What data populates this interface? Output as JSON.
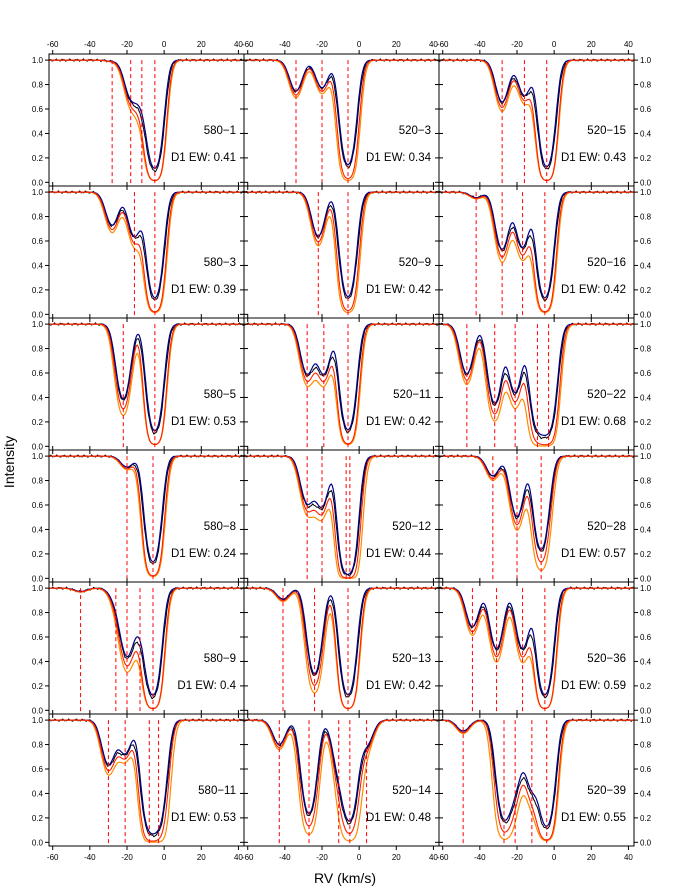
{
  "chart_data": {
    "type": "line",
    "layout": {
      "rows": 6,
      "cols": 3
    },
    "xlabel": "RV (km/s)",
    "ylabel": "Intensity",
    "xlim": [
      -62,
      43
    ],
    "ylim": [
      -0.03,
      1.05
    ],
    "x_ticks": [
      -60,
      -40,
      -20,
      0,
      20,
      40
    ],
    "y_ticks": [
      0.0,
      0.2,
      0.4,
      0.6,
      0.8,
      1.0
    ],
    "series_colors": {
      "observed": "#000000",
      "blue_model": "#00008b",
      "orange_model": "#ff8c00",
      "red_model": "#ff2000",
      "marker": "#ff0000"
    },
    "panels": [
      {
        "label": "580−1",
        "ew": "D1 EW: 0.41",
        "components": [
          [
            -28,
            0.01
          ],
          [
            -18,
            0.32
          ],
          [
            -12,
            0.3
          ],
          [
            -5,
            0.98
          ]
        ],
        "markers": [
          -28,
          -18,
          -12,
          -5
        ]
      },
      {
        "label": "520−3",
        "ew": "D1 EW: 0.34",
        "components": [
          [
            -34,
            0.28
          ],
          [
            -20,
            0.25
          ],
          [
            -6,
            0.95
          ]
        ],
        "markers": [
          -34,
          -20,
          -6
        ]
      },
      {
        "label": "520−15",
        "ew": "D1 EW: 0.43",
        "components": [
          [
            -28,
            0.38
          ],
          [
            -16,
            0.32
          ],
          [
            -4,
            0.97
          ]
        ],
        "markers": [
          -28,
          -16,
          -4
        ]
      },
      {
        "label": "580−3",
        "ew": "D1 EW: 0.39",
        "components": [
          [
            -28,
            0.3
          ],
          [
            -16,
            0.4
          ],
          [
            -5,
            0.96
          ]
        ],
        "markers": [
          -16,
          -5
        ]
      },
      {
        "label": "520−9",
        "ew": "D1 EW: 0.42",
        "components": [
          [
            -22,
            0.4
          ],
          [
            -6,
            0.95
          ]
        ],
        "markers": [
          -22,
          -6
        ]
      },
      {
        "label": "520−16",
        "ew": "D1 EW: 0.42",
        "components": [
          [
            -42,
            0.05
          ],
          [
            -28,
            0.52
          ],
          [
            -17,
            0.5
          ],
          [
            -5,
            0.96
          ]
        ],
        "markers": [
          -42,
          -28,
          -17,
          -5
        ]
      },
      {
        "label": "580−5",
        "ew": "D1 EW: 0.53",
        "components": [
          [
            -22,
            0.68
          ],
          [
            -5,
            0.97
          ]
        ],
        "markers": [
          -22,
          -5
        ]
      },
      {
        "label": "520−11",
        "ew": "D1 EW: 0.42",
        "components": [
          [
            -28,
            0.45
          ],
          [
            -19,
            0.45
          ],
          [
            -6,
            0.96
          ]
        ],
        "markers": [
          -28,
          -19,
          -6
        ]
      },
      {
        "label": "520−22",
        "ew": "D1 EW: 0.68",
        "components": [
          [
            -47,
            0.45
          ],
          [
            -32,
            0.72
          ],
          [
            -21,
            0.62
          ],
          [
            -9,
            0.92
          ],
          [
            -3,
            0.95
          ]
        ],
        "markers": [
          -47,
          -32,
          -21,
          -9,
          -3
        ]
      },
      {
        "label": "580−8",
        "ew": "D1 EW: 0.24",
        "components": [
          [
            -20,
            0.1
          ],
          [
            -6,
            0.96
          ]
        ],
        "markers": [
          -20,
          -6
        ]
      },
      {
        "label": "520−12",
        "ew": "D1 EW: 0.44",
        "components": [
          [
            -28,
            0.42
          ],
          [
            -20,
            0.45
          ],
          [
            -7,
            0.95
          ],
          [
            -5,
            0.9
          ]
        ],
        "markers": [
          -28,
          -20,
          -7,
          -5
        ]
      },
      {
        "label": "520−28",
        "ew": "D1 EW: 0.57",
        "components": [
          [
            -33,
            0.18
          ],
          [
            -20,
            0.55
          ],
          [
            -7,
            0.85
          ]
        ],
        "markers": [
          -33,
          -20,
          -7
        ]
      },
      {
        "label": "580−9",
        "ew": "D1 EW: 0.4",
        "components": [
          [
            -45,
            0.03
          ],
          [
            -26,
            0.1
          ],
          [
            -20,
            0.6
          ],
          [
            -13,
            0.28
          ],
          [
            -6,
            0.97
          ]
        ],
        "markers": [
          -45,
          -26,
          -20,
          -13,
          -6
        ]
      },
      {
        "label": "520−13",
        "ew": "D1 EW: 0.42",
        "components": [
          [
            -41,
            0.1
          ],
          [
            -24,
            0.78
          ],
          [
            -6,
            0.97
          ]
        ],
        "markers": [
          -41,
          -24,
          -6
        ]
      },
      {
        "label": "520−36",
        "ew": "D1 EW: 0.59",
        "components": [
          [
            -44,
            0.35
          ],
          [
            -31,
            0.55
          ],
          [
            -17,
            0.55
          ],
          [
            -5,
            0.97
          ]
        ],
        "markers": [
          -44,
          -31,
          -17,
          -5
        ]
      },
      {
        "label": "580−11",
        "ew": "D1 EW: 0.53",
        "components": [
          [
            -30,
            0.4
          ],
          [
            -21,
            0.3
          ],
          [
            -8,
            0.95
          ],
          [
            -3,
            0.9
          ]
        ],
        "markers": [
          -30,
          -21,
          -8,
          -3
        ]
      },
      {
        "label": "520−14",
        "ew": "D1 EW: 0.48",
        "components": [
          [
            -43,
            0.22
          ],
          [
            -27,
            0.85
          ],
          [
            -11,
            0.4
          ],
          [
            -5,
            0.9
          ],
          [
            4,
            0.22
          ]
        ],
        "markers": [
          -43,
          -27,
          -11,
          -5,
          4
        ]
      },
      {
        "label": "520−39",
        "ew": "D1 EW: 0.55",
        "components": [
          [
            -49,
            0.1
          ],
          [
            -27,
            0.88
          ],
          [
            -21,
            0.55
          ],
          [
            -12,
            0.6
          ],
          [
            -4,
            0.96
          ]
        ],
        "markers": [
          -49,
          -27,
          -21,
          -12,
          -4
        ]
      }
    ]
  }
}
